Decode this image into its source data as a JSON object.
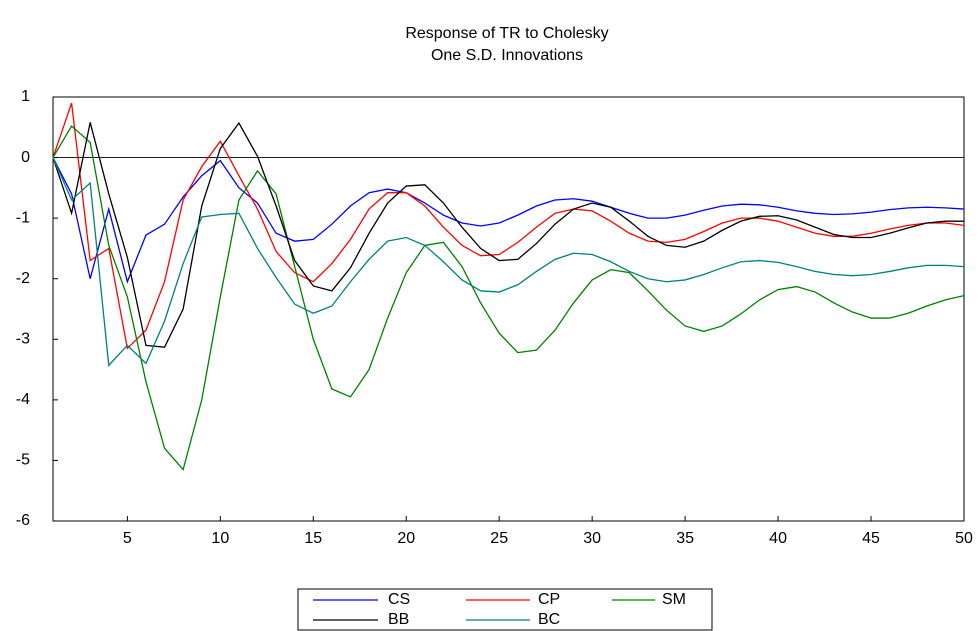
{
  "chart_data": {
    "type": "line",
    "title": "Response of TR to Cholesky",
    "subtitle": "One S.D. Innovations",
    "x": [
      1,
      2,
      3,
      4,
      5,
      6,
      7,
      8,
      9,
      10,
      11,
      12,
      13,
      14,
      15,
      16,
      17,
      18,
      19,
      20,
      21,
      22,
      23,
      24,
      25,
      26,
      27,
      28,
      29,
      30,
      31,
      32,
      33,
      34,
      35,
      36,
      37,
      38,
      39,
      40,
      41,
      42,
      43,
      44,
      45,
      46,
      47,
      48,
      49,
      50
    ],
    "xlim": [
      1,
      50
    ],
    "xticks": [
      5,
      10,
      15,
      20,
      25,
      30,
      35,
      40,
      45,
      50
    ],
    "ylim": [
      -6,
      1
    ],
    "yticks": [
      -6,
      -5,
      -4,
      -3,
      -2,
      -1,
      0,
      1
    ],
    "zero_line": true,
    "series": [
      {
        "name": "CS",
        "color": "#0000ff",
        "values": [
          0,
          -0.6,
          -2.0,
          -0.85,
          -2.05,
          -1.28,
          -1.1,
          -0.65,
          -0.3,
          -0.05,
          -0.5,
          -0.75,
          -1.25,
          -1.38,
          -1.35,
          -1.1,
          -0.8,
          -0.58,
          -0.52,
          -0.58,
          -0.75,
          -0.95,
          -1.08,
          -1.13,
          -1.08,
          -0.95,
          -0.8,
          -0.7,
          -0.68,
          -0.72,
          -0.82,
          -0.92,
          -1.0,
          -1.0,
          -0.95,
          -0.87,
          -0.8,
          -0.77,
          -0.78,
          -0.82,
          -0.88,
          -0.92,
          -0.94,
          -0.93,
          -0.9,
          -0.86,
          -0.83,
          -0.82,
          -0.83,
          -0.85
        ]
      },
      {
        "name": "CP",
        "color": "#ff0000",
        "values": [
          0,
          0.9,
          -1.7,
          -1.5,
          -3.15,
          -2.85,
          -2.05,
          -0.7,
          -0.15,
          0.27,
          -0.3,
          -0.85,
          -1.55,
          -1.9,
          -2.05,
          -1.75,
          -1.35,
          -0.85,
          -0.58,
          -0.58,
          -0.8,
          -1.15,
          -1.45,
          -1.62,
          -1.6,
          -1.4,
          -1.15,
          -0.92,
          -0.85,
          -0.88,
          -1.05,
          -1.25,
          -1.38,
          -1.4,
          -1.35,
          -1.22,
          -1.08,
          -1.0,
          -1.0,
          -1.05,
          -1.15,
          -1.25,
          -1.3,
          -1.3,
          -1.25,
          -1.18,
          -1.12,
          -1.08,
          -1.08,
          -1.12
        ]
      },
      {
        "name": "SM",
        "color": "#008000",
        "values": [
          0,
          0.52,
          0.25,
          -1.45,
          -2.3,
          -3.7,
          -4.8,
          -5.15,
          -4.0,
          -2.3,
          -0.7,
          -0.22,
          -0.6,
          -1.8,
          -3.0,
          -3.82,
          -3.95,
          -3.5,
          -2.65,
          -1.9,
          -1.45,
          -1.4,
          -1.8,
          -2.4,
          -2.9,
          -3.22,
          -3.18,
          -2.85,
          -2.4,
          -2.02,
          -1.85,
          -1.9,
          -2.2,
          -2.52,
          -2.78,
          -2.87,
          -2.78,
          -2.58,
          -2.35,
          -2.18,
          -2.13,
          -2.22,
          -2.4,
          -2.55,
          -2.65,
          -2.65,
          -2.57,
          -2.45,
          -2.35,
          -2.28
        ]
      },
      {
        "name": "BB",
        "color": "#000000",
        "values": [
          0,
          -0.92,
          0.58,
          -0.6,
          -1.65,
          -3.1,
          -3.13,
          -2.5,
          -0.8,
          0.15,
          0.57,
          0.02,
          -0.8,
          -1.7,
          -2.12,
          -2.2,
          -1.82,
          -1.25,
          -0.75,
          -0.47,
          -0.45,
          -0.75,
          -1.15,
          -1.5,
          -1.7,
          -1.68,
          -1.42,
          -1.1,
          -0.85,
          -0.75,
          -0.82,
          -1.05,
          -1.3,
          -1.45,
          -1.48,
          -1.38,
          -1.2,
          -1.05,
          -0.97,
          -0.96,
          -1.03,
          -1.15,
          -1.27,
          -1.32,
          -1.32,
          -1.25,
          -1.16,
          -1.08,
          -1.05,
          -1.05
        ]
      },
      {
        "name": "BC",
        "color": "#008080",
        "values": [
          0,
          -0.7,
          -0.42,
          -3.43,
          -3.1,
          -3.4,
          -2.7,
          -1.75,
          -0.98,
          -0.94,
          -0.92,
          -1.5,
          -1.98,
          -2.42,
          -2.57,
          -2.45,
          -2.05,
          -1.68,
          -1.38,
          -1.32,
          -1.45,
          -1.72,
          -2.02,
          -2.2,
          -2.22,
          -2.1,
          -1.88,
          -1.68,
          -1.58,
          -1.6,
          -1.72,
          -1.88,
          -2.0,
          -2.05,
          -2.02,
          -1.93,
          -1.82,
          -1.72,
          -1.7,
          -1.73,
          -1.8,
          -1.88,
          -1.93,
          -1.95,
          -1.93,
          -1.88,
          -1.82,
          -1.78,
          -1.78,
          -1.8
        ]
      }
    ]
  }
}
